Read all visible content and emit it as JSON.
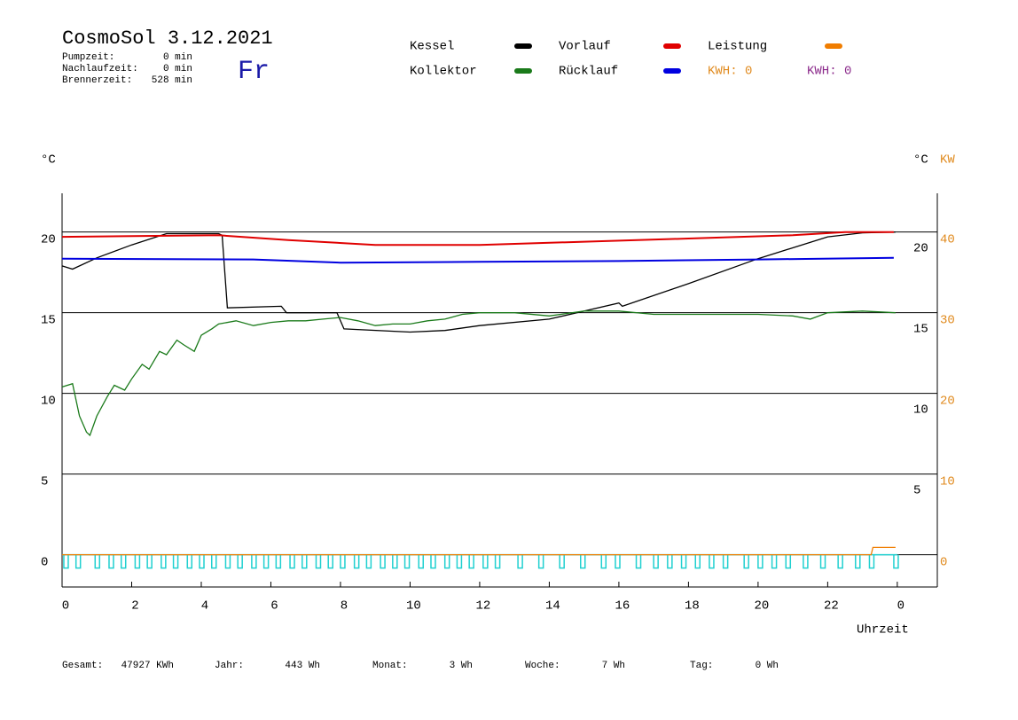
{
  "header": {
    "title": "CosmoSol 3.12.2021",
    "weekday": "Fr",
    "stats": [
      {
        "label": "Pumpzeit:",
        "value": "0 min"
      },
      {
        "label": "Nachlaufzeit:",
        "value": "0 min"
      },
      {
        "label": "Brennerzeit:",
        "value": "528 min"
      }
    ]
  },
  "footer": [
    {
      "label": "Gesamt:",
      "value": "47927 KWh"
    },
    {
      "label": "Jahr:",
      "value": "443 Wh"
    },
    {
      "label": "Monat:",
      "value": "3 Wh"
    },
    {
      "label": "Woche:",
      "value": "7 Wh"
    },
    {
      "label": "Tag:",
      "value": "0 Wh"
    }
  ],
  "chart_data": {
    "type": "line",
    "ylabel": "°C",
    "y_right_label": "°C",
    "y2label": "KW",
    "xlabel": "Uhrzeit",
    "kwh_labels": [
      {
        "text": "KWH: 0",
        "color": "#e08a1e"
      },
      {
        "text": "KWH: 0",
        "color": "#8b2a8b"
      }
    ],
    "xlim": [
      0,
      25.15
    ],
    "xticks": [
      0,
      2,
      4,
      6,
      8,
      10,
      12,
      14,
      16,
      18,
      20,
      22,
      {
        "value": 24,
        "label": "0"
      }
    ],
    "ylim": [
      -2,
      22.4
    ],
    "yticks": [
      0,
      5,
      10,
      15,
      20
    ],
    "yticks_right": [
      5,
      10,
      15,
      20
    ],
    "y2lim": [
      -4,
      44.8
    ],
    "y2ticks": [
      0,
      10,
      20,
      30,
      40
    ],
    "grid": true,
    "series": [
      {
        "name": "Kessel",
        "color": "#000000",
        "x": [
          0,
          0.3,
          1,
          2,
          3,
          4.5,
          4.6,
          4.75,
          6.3,
          6.45,
          7.9,
          8.1,
          10,
          11,
          12,
          14,
          16,
          16.1,
          18,
          20,
          22,
          23,
          23.95
        ],
        "values": [
          17.9,
          17.7,
          18.4,
          19.2,
          19.9,
          19.9,
          19.8,
          15.3,
          15.4,
          15.0,
          15.0,
          14.0,
          13.8,
          13.9,
          14.2,
          14.6,
          15.6,
          15.4,
          16.8,
          18.35,
          19.7,
          19.95,
          20.0
        ]
      },
      {
        "name": "Kollektor",
        "color": "#1a7a1a",
        "x": [
          0,
          0.3,
          0.5,
          0.7,
          0.8,
          1,
          1.3,
          1.5,
          1.8,
          2,
          2.3,
          2.5,
          2.8,
          3,
          3.3,
          3.5,
          3.8,
          4,
          4.3,
          4.5,
          5,
          5.5,
          6,
          6.5,
          7,
          7.5,
          8,
          8.5,
          9,
          9.5,
          10,
          10.5,
          11,
          11.5,
          12,
          13,
          14,
          15,
          16,
          17,
          18,
          19,
          20,
          21,
          21.5,
          22,
          23,
          23.95
        ],
        "values": [
          10.4,
          10.6,
          8.6,
          7.6,
          7.4,
          8.6,
          9.8,
          10.5,
          10.2,
          10.9,
          11.8,
          11.5,
          12.6,
          12.4,
          13.3,
          13.0,
          12.6,
          13.6,
          14.0,
          14.3,
          14.5,
          14.2,
          14.4,
          14.5,
          14.5,
          14.6,
          14.7,
          14.5,
          14.2,
          14.3,
          14.3,
          14.5,
          14.6,
          14.9,
          15.0,
          15.0,
          14.8,
          15.1,
          15.1,
          14.9,
          14.9,
          14.9,
          14.9,
          14.8,
          14.6,
          15.0,
          15.1,
          15.0
        ]
      },
      {
        "name": "Vorlauf",
        "color": "#e00000",
        "x": [
          0,
          4.5,
          6.5,
          9,
          12,
          15,
          18,
          21,
          22.5,
          23.9
        ],
        "values": [
          19.7,
          19.8,
          19.5,
          19.2,
          19.2,
          19.4,
          19.6,
          19.8,
          20.0,
          20.0
        ]
      },
      {
        "name": "Rücklauf",
        "color": "#0000e0",
        "x": [
          0,
          5.5,
          8,
          12,
          16,
          20,
          23.9
        ],
        "values": [
          18.35,
          18.3,
          18.1,
          18.15,
          18.2,
          18.3,
          18.4
        ]
      },
      {
        "name": "Leistung",
        "color": "#f07d00",
        "axis": "y2",
        "x": [
          0,
          23.25,
          23.3,
          23.95
        ],
        "values": [
          0,
          0,
          0.9,
          0.9
        ]
      }
    ],
    "pulses": {
      "color": "#20d0d0",
      "x": [
        0.05,
        0.4,
        0.95,
        1.35,
        1.7,
        2.1,
        2.45,
        2.85,
        3.2,
        3.6,
        3.95,
        4.3,
        4.7,
        5.05,
        5.45,
        5.8,
        6.15,
        6.55,
        6.9,
        7.3,
        7.65,
        8.0,
        8.4,
        8.75,
        9.15,
        9.5,
        9.85,
        10.25,
        10.6,
        11.0,
        11.35,
        11.7,
        12.1,
        12.45,
        13.1,
        13.7,
        14.3,
        14.9,
        15.5,
        15.9,
        16.5,
        17.0,
        17.4,
        17.8,
        18.2,
        18.6,
        19.0,
        19.6,
        20.0,
        20.4,
        20.8,
        21.3,
        21.8,
        22.3,
        22.8,
        23.2,
        23.9
      ]
    }
  }
}
